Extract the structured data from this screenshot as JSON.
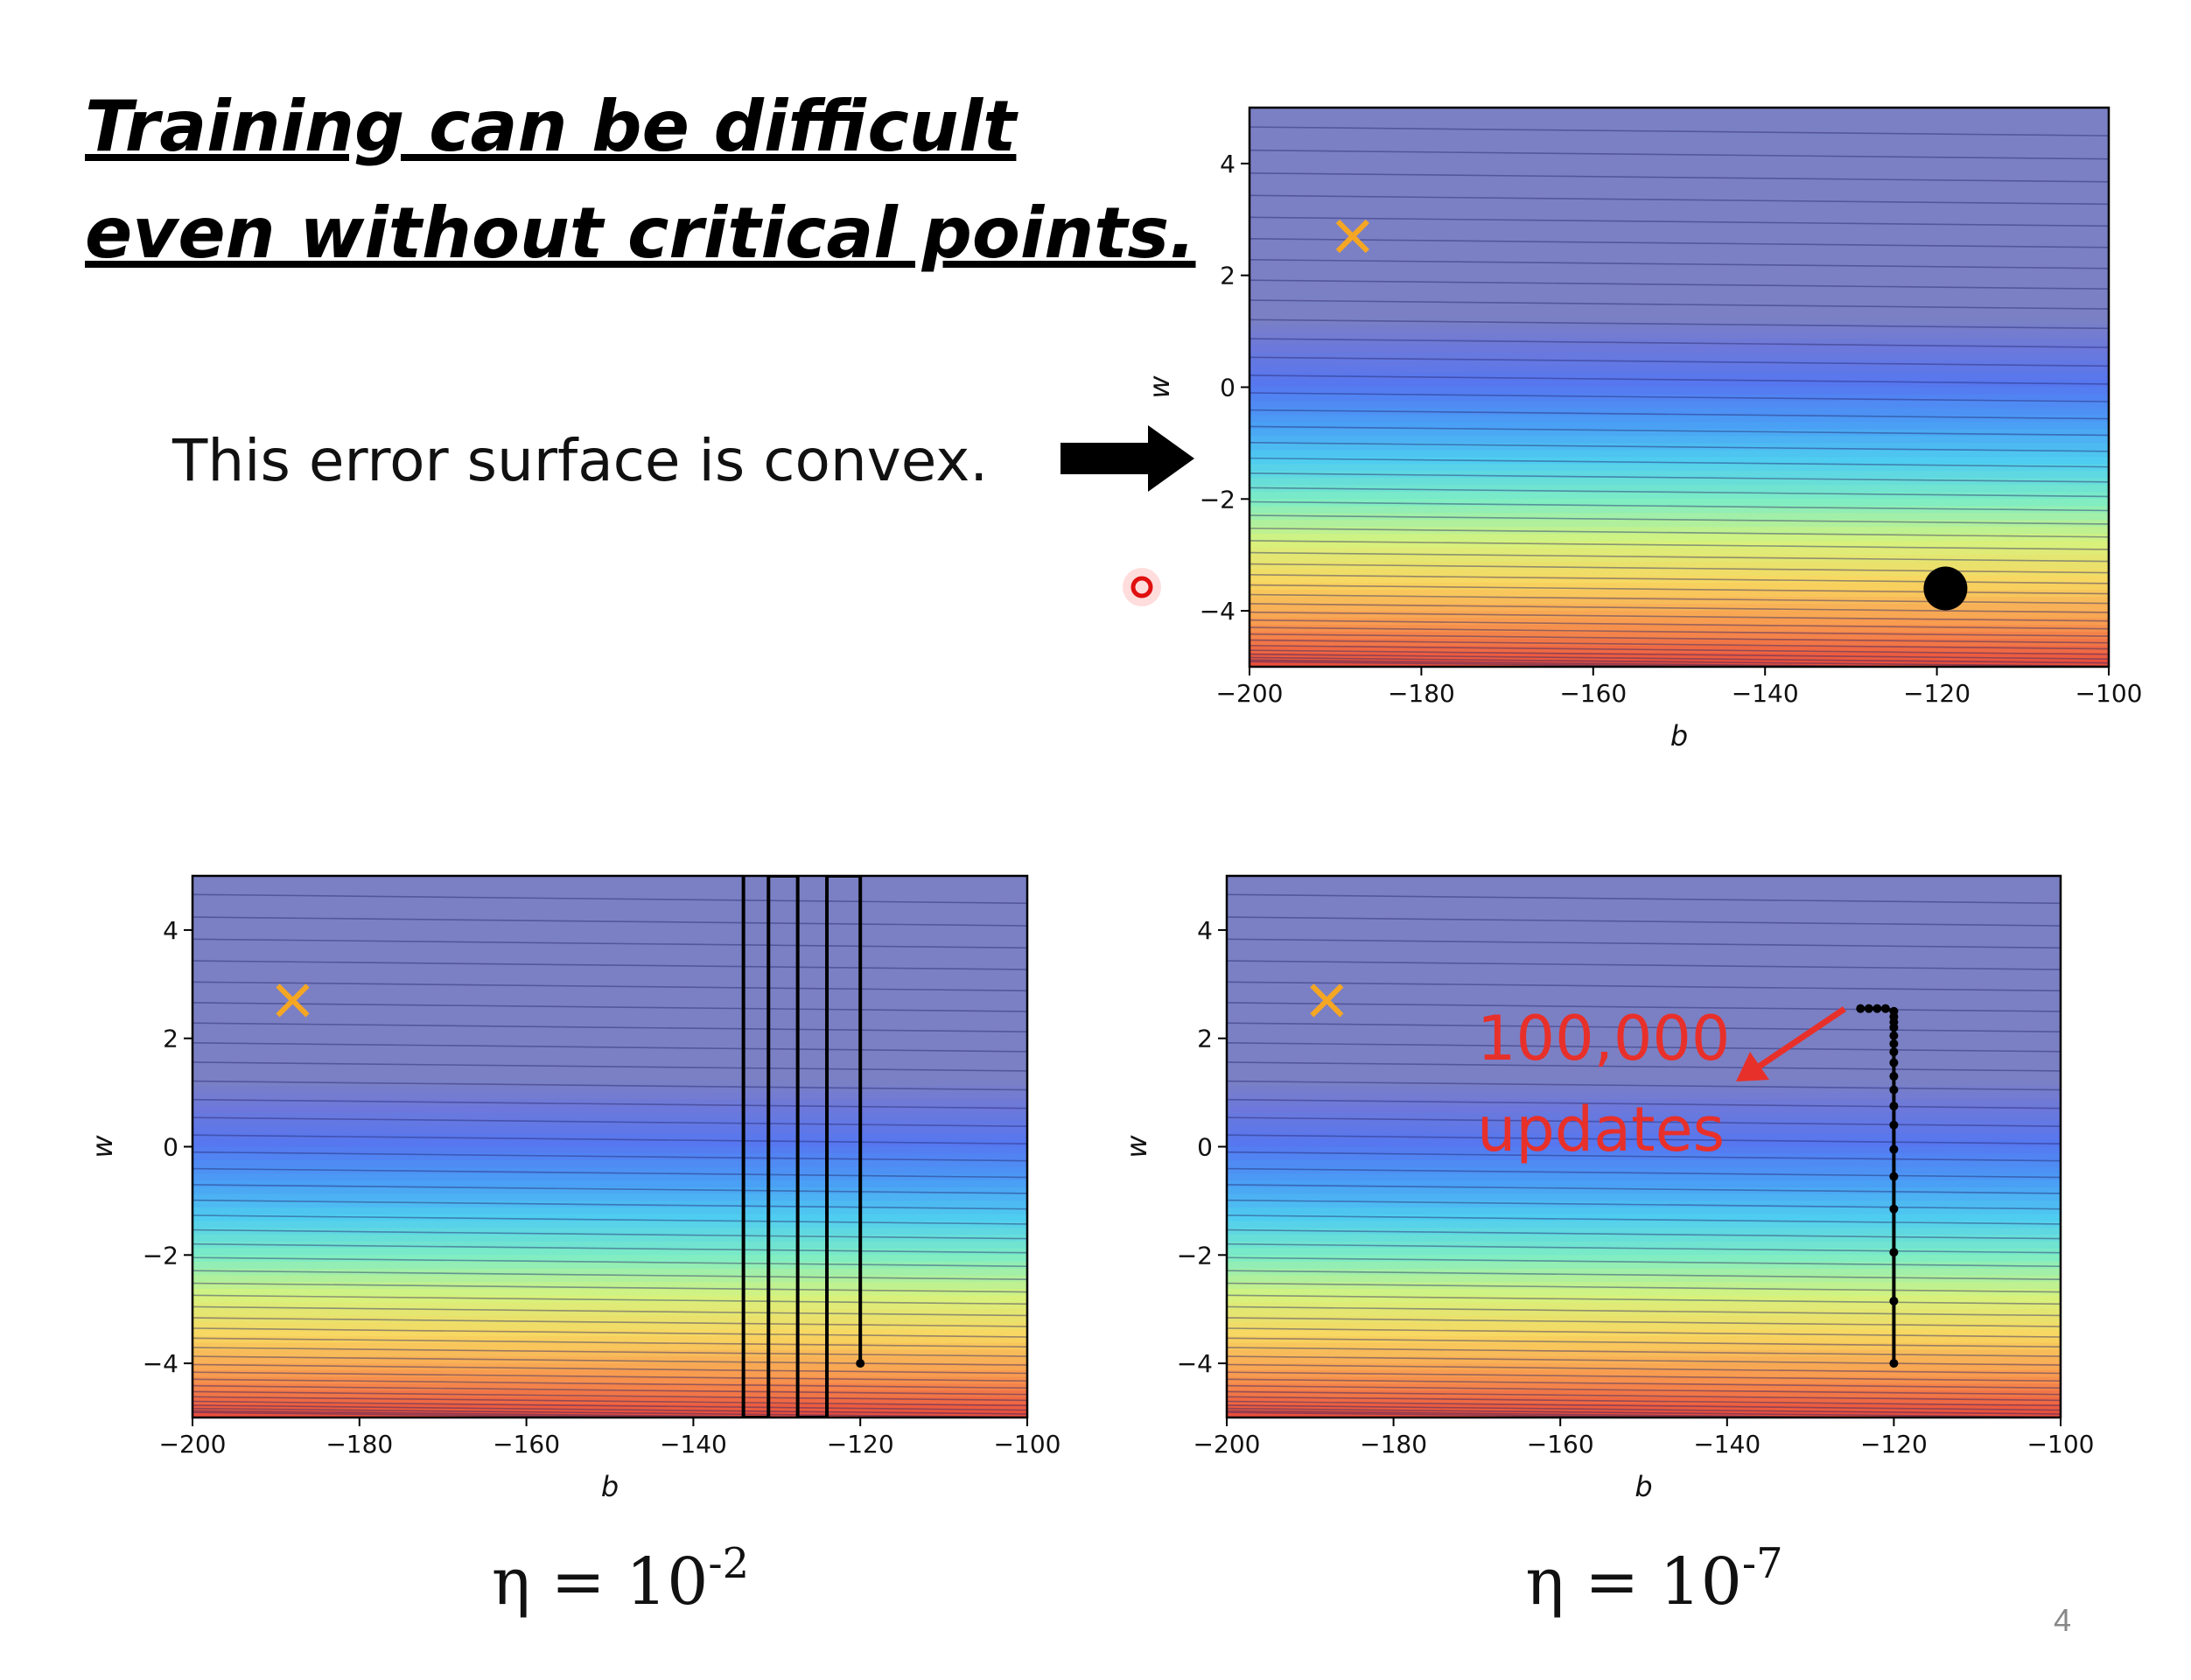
{
  "title": [
    "Training can be difficult",
    "even without critical points."
  ],
  "note": "This error surface is convex.",
  "page_number": "4",
  "chart_data": [
    {
      "type": "contour",
      "xlabel": "b",
      "ylabel": "w",
      "xlim": [
        -200,
        -100
      ],
      "ylim": [
        -5,
        5
      ],
      "xticks": [
        {
          "value": -200,
          "label": "−200"
        },
        {
          "value": -180,
          "label": "−180"
        },
        {
          "value": -160,
          "label": "−160"
        },
        {
          "value": -140,
          "label": "−140"
        },
        {
          "value": -120,
          "label": "−120"
        },
        {
          "value": -100,
          "label": "−100"
        }
      ],
      "yticks": [
        {
          "value": -4,
          "label": "−4"
        },
        {
          "value": -2,
          "label": "−2"
        },
        0,
        2,
        4
      ],
      "colormap": [
        "#7b80c4",
        "#6b78dc",
        "#5577f0",
        "#4a9cf6",
        "#4fcdf0",
        "#7eedc4",
        "#d6f27e",
        "#f8d660",
        "#f8984f",
        "#e8493a"
      ],
      "minimum": {
        "x": -188,
        "y": 2.7,
        "color": "#f5a623"
      },
      "point": {
        "x": -119,
        "y": -3.6,
        "color": "#000000"
      }
    },
    {
      "type": "contour",
      "xlabel": "b",
      "ylabel": "w",
      "xlim": [
        -200,
        -100
      ],
      "ylim": [
        -5,
        5
      ],
      "xticks": [
        {
          "value": -200,
          "label": "−200"
        },
        {
          "value": -180,
          "label": "−180"
        },
        {
          "value": -160,
          "label": "−160"
        },
        {
          "value": -140,
          "label": "−140"
        },
        {
          "value": -120,
          "label": "−120"
        },
        {
          "value": -100,
          "label": "−100"
        }
      ],
      "yticks": [
        {
          "value": -4,
          "label": "−4"
        },
        {
          "value": -2,
          "label": "−2"
        },
        0,
        2,
        4
      ],
      "colormap": [
        "#7b80c4",
        "#6b78dc",
        "#5577f0",
        "#4a9cf6",
        "#4fcdf0",
        "#7eedc4",
        "#d6f27e",
        "#f8d660",
        "#f8984f",
        "#e8493a"
      ],
      "minimum": {
        "x": -188,
        "y": 2.7,
        "color": "#f5a623"
      },
      "path": {
        "x": [
          -120,
          -120,
          -124,
          -124,
          -127.5,
          -127.5,
          -131,
          -131,
          -134,
          -134
        ],
        "y": [
          -4,
          5,
          5,
          -5,
          -5,
          5,
          5,
          -5,
          -5,
          5
        ],
        "color": "#000000",
        "point_markers": "start"
      },
      "caption": {
        "text": "η = 10",
        "exponent": "-2"
      }
    },
    {
      "type": "contour",
      "xlabel": "b",
      "ylabel": "w",
      "xlim": [
        -200,
        -100
      ],
      "ylim": [
        -5,
        5
      ],
      "xticks": [
        {
          "value": -200,
          "label": "−200"
        },
        {
          "value": -180,
          "label": "−180"
        },
        {
          "value": -160,
          "label": "−160"
        },
        {
          "value": -140,
          "label": "−140"
        },
        {
          "value": -120,
          "label": "−120"
        },
        {
          "value": -100,
          "label": "−100"
        }
      ],
      "yticks": [
        {
          "value": -4,
          "label": "−4"
        },
        {
          "value": -2,
          "label": "−2"
        },
        0,
        2,
        4
      ],
      "colormap": [
        "#7b80c4",
        "#6b78dc",
        "#5577f0",
        "#4a9cf6",
        "#4fcdf0",
        "#7eedc4",
        "#d6f27e",
        "#f8d660",
        "#f8984f",
        "#e8493a"
      ],
      "minimum": {
        "x": -188,
        "y": 2.7,
        "color": "#f5a623"
      },
      "path": {
        "x": [
          -120,
          -120,
          -120,
          -120,
          -120,
          -120,
          -120,
          -120,
          -120,
          -120,
          -120,
          -120,
          -120,
          -120,
          -120,
          -120,
          -120,
          -120,
          -121,
          -122,
          -123,
          -124
        ],
        "y": [
          -4,
          -2.85,
          -1.95,
          -1.15,
          -0.55,
          -0.05,
          0.4,
          0.75,
          1.05,
          1.3,
          1.55,
          1.75,
          1.9,
          2.05,
          2.2,
          2.3,
          2.4,
          2.5,
          2.55,
          2.55,
          2.55,
          2.55
        ],
        "color": "#000000",
        "point_markers": "all"
      },
      "annotation": {
        "lines": [
          "100,000",
          "updates"
        ],
        "color": "#e8302a"
      },
      "caption": {
        "text": "η = 10",
        "exponent": "-7"
      }
    }
  ]
}
